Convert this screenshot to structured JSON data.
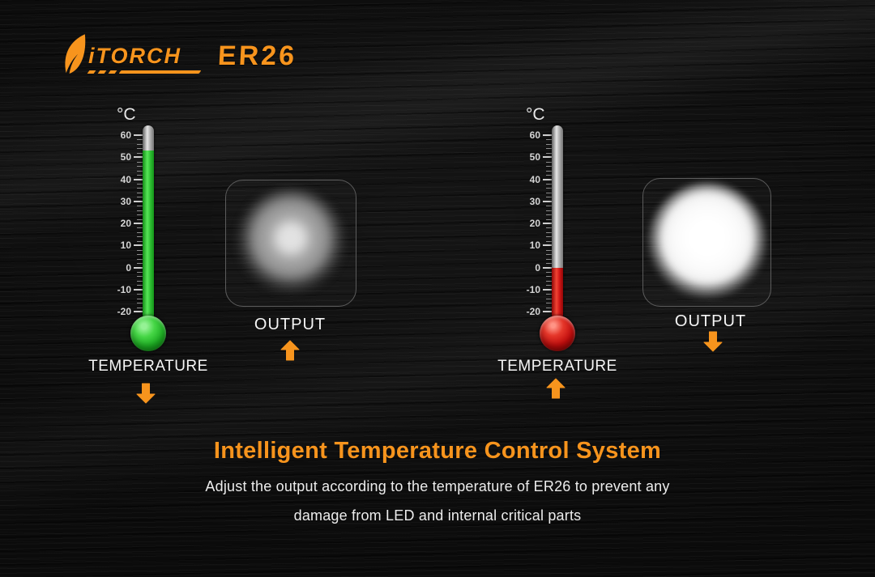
{
  "colors": {
    "background": "#0b0b0b",
    "accent_orange": "#f7941d",
    "text_light": "#f5f5f5",
    "thermo_green": "#3fd13f",
    "thermo_red": "#d01717",
    "scale_text": "#d5d5d5"
  },
  "logo": {
    "brand": "iTORCH",
    "model": "ER26"
  },
  "diagram": {
    "unit_label": "°C",
    "scale_labels": [
      "60",
      "50",
      "40",
      "30",
      "20",
      "10",
      "0",
      "-10",
      "-20"
    ],
    "scale_max": 60,
    "scale_min": -20,
    "left": {
      "reading_c": 53,
      "fluid_color": "#3fd13f",
      "temperature_label": "TEMPERATURE",
      "temperature_trend": "down",
      "output_label": "OUTPUT",
      "output_trend": "up",
      "output_state": "dim"
    },
    "right": {
      "reading_c": 0,
      "fluid_color": "#d01717",
      "temperature_label": "TEMPERATURE",
      "temperature_trend": "up",
      "output_label": "OUTPUT",
      "output_trend": "down",
      "output_state": "bright"
    }
  },
  "caption": {
    "title": "Intelligent Temperature Control System",
    "subtitle_line1": "Adjust the output according to the temperature of ER26 to prevent any",
    "subtitle_line2": "damage from LED and internal critical parts"
  }
}
